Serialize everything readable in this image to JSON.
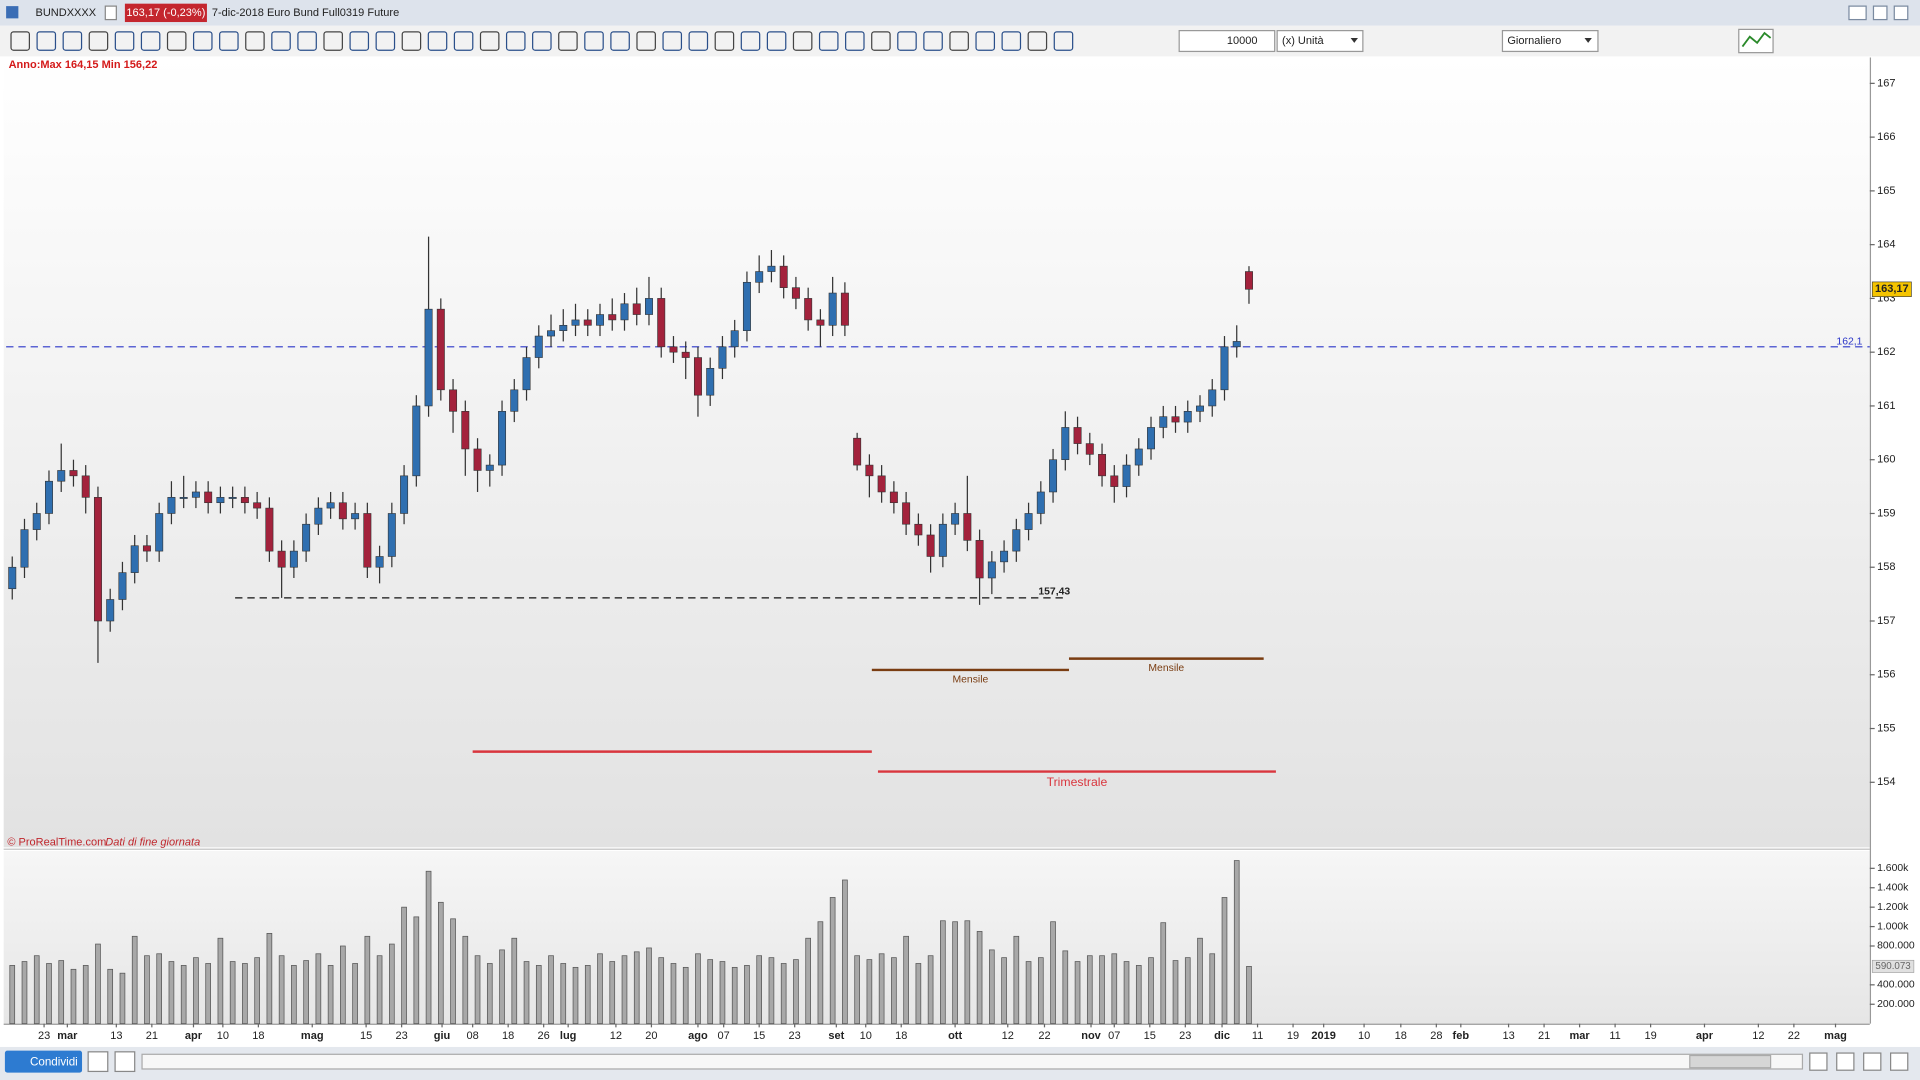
{
  "window": {
    "symbol": "BUNDXXXX",
    "price_badge": "163,17 (-0,23%)",
    "title": "7-dic-2018 Euro Bund Full0319 Future"
  },
  "toolbar": {
    "quantity": "10000",
    "unit": "(x) Unità",
    "period": "Giornaliero"
  },
  "footer": {
    "share": "Condividi"
  },
  "chart_data": [
    {
      "type": "candlestick",
      "header_note": "Anno:Max 164,15 Min 156,22",
      "source": "© ProRealTime.com",
      "source_note": "Dati di fine giornata",
      "x": [
        0,
        2,
        4,
        6,
        8,
        10,
        12,
        14,
        16,
        18,
        20,
        22,
        24,
        26,
        28,
        30,
        32,
        34,
        36,
        38,
        40,
        42,
        44,
        46,
        48,
        50,
        52,
        54,
        56,
        58,
        60,
        62,
        64,
        66,
        68,
        70,
        72,
        74,
        76,
        78,
        80,
        82,
        84,
        86,
        88,
        90,
        92,
        94,
        96,
        98,
        100,
        102,
        104,
        106,
        108,
        110,
        112,
        114,
        116,
        118,
        120,
        122,
        124,
        126,
        128,
        130,
        132,
        134,
        136,
        138,
        140,
        142,
        144,
        146,
        148,
        150,
        152,
        154,
        156,
        158,
        160,
        162,
        164,
        166,
        168,
        170,
        172,
        174,
        176,
        178,
        180,
        182,
        184,
        186,
        188,
        190,
        192,
        194,
        196,
        198,
        200,
        202
      ],
      "open": [
        157.6,
        158.0,
        158.7,
        159.0,
        159.6,
        159.8,
        159.7,
        159.3,
        157.0,
        157.4,
        157.9,
        158.4,
        158.3,
        159.0,
        159.3,
        159.3,
        159.4,
        159.2,
        159.3,
        159.3,
        159.2,
        159.1,
        158.3,
        158.0,
        158.3,
        158.8,
        159.1,
        159.2,
        158.9,
        159.0,
        158.0,
        158.2,
        159.0,
        159.7,
        161.0,
        162.8,
        161.3,
        160.9,
        160.2,
        159.8,
        159.9,
        160.9,
        161.3,
        161.9,
        162.3,
        162.4,
        162.5,
        162.6,
        162.5,
        162.7,
        162.6,
        162.9,
        162.7,
        163.0,
        162.1,
        162.0,
        161.9,
        161.2,
        161.7,
        162.1,
        162.4,
        163.3,
        163.5,
        163.6,
        163.2,
        163.0,
        162.6,
        162.5,
        163.1,
        160.4,
        159.9,
        159.7,
        159.4,
        159.2,
        158.8,
        158.6,
        158.2,
        158.8,
        159.0,
        158.5,
        157.8,
        158.1,
        158.3,
        158.7,
        159.0,
        159.4,
        160.0,
        160.6,
        160.3,
        160.1,
        159.7,
        159.5,
        159.9,
        160.2,
        160.6,
        160.8,
        160.7,
        160.9,
        161.0,
        161.3,
        162.1,
        163.5
      ],
      "high": [
        158.2,
        158.9,
        159.2,
        159.8,
        160.3,
        160.0,
        159.9,
        159.5,
        157.6,
        158.1,
        158.6,
        158.6,
        159.2,
        159.6,
        159.7,
        159.6,
        159.6,
        159.5,
        159.5,
        159.5,
        159.4,
        159.3,
        158.5,
        158.5,
        159.0,
        159.3,
        159.4,
        159.4,
        159.2,
        159.2,
        158.4,
        159.2,
        159.9,
        161.2,
        164.15,
        163.0,
        161.5,
        161.1,
        160.4,
        160.1,
        161.1,
        161.5,
        162.1,
        162.5,
        162.7,
        162.8,
        162.9,
        162.8,
        162.9,
        163.0,
        163.1,
        163.2,
        163.4,
        163.2,
        162.3,
        162.2,
        162.1,
        161.9,
        162.3,
        162.6,
        163.5,
        163.8,
        163.9,
        163.8,
        163.4,
        163.2,
        162.8,
        163.4,
        163.3,
        160.5,
        160.1,
        159.9,
        159.6,
        159.4,
        159.0,
        158.8,
        159.0,
        159.2,
        159.7,
        158.7,
        158.3,
        158.5,
        158.9,
        159.2,
        159.6,
        160.2,
        160.9,
        160.8,
        160.5,
        160.3,
        159.9,
        160.1,
        160.4,
        160.8,
        161.0,
        161.0,
        161.1,
        161.2,
        161.5,
        162.3,
        162.5,
        163.6
      ],
      "low": [
        157.4,
        157.8,
        158.5,
        158.8,
        159.4,
        159.5,
        159.0,
        156.22,
        156.8,
        157.2,
        157.7,
        158.1,
        158.1,
        158.8,
        159.1,
        159.1,
        159.0,
        159.0,
        159.1,
        159.0,
        158.9,
        158.1,
        157.43,
        157.8,
        158.1,
        158.6,
        158.9,
        158.7,
        158.7,
        157.8,
        157.7,
        158.0,
        158.8,
        159.5,
        160.8,
        161.1,
        160.5,
        159.7,
        159.4,
        159.5,
        159.7,
        160.7,
        161.1,
        161.7,
        162.1,
        162.2,
        162.3,
        162.3,
        162.3,
        162.4,
        162.4,
        162.5,
        162.5,
        161.9,
        161.8,
        161.5,
        160.8,
        161.0,
        161.5,
        161.9,
        162.2,
        163.1,
        163.3,
        163.0,
        162.8,
        162.4,
        162.1,
        162.3,
        162.3,
        159.8,
        159.3,
        159.2,
        159.0,
        158.6,
        158.4,
        157.9,
        158.0,
        158.6,
        158.3,
        157.3,
        157.5,
        157.9,
        158.1,
        158.5,
        158.8,
        159.2,
        159.8,
        160.1,
        159.9,
        159.5,
        159.2,
        159.3,
        159.7,
        160.0,
        160.4,
        160.5,
        160.5,
        160.7,
        160.8,
        161.1,
        161.9,
        162.9
      ],
      "close": [
        158.0,
        158.7,
        159.0,
        159.6,
        159.8,
        159.7,
        159.3,
        157.0,
        157.4,
        157.9,
        158.4,
        158.3,
        159.0,
        159.3,
        159.3,
        159.4,
        159.2,
        159.3,
        159.3,
        159.2,
        159.1,
        158.3,
        158.0,
        158.3,
        158.8,
        159.1,
        159.2,
        158.9,
        159.0,
        158.0,
        158.2,
        159.0,
        159.7,
        161.0,
        162.8,
        161.3,
        160.9,
        160.2,
        159.8,
        159.9,
        160.9,
        161.3,
        161.9,
        162.3,
        162.4,
        162.5,
        162.6,
        162.5,
        162.7,
        162.6,
        162.9,
        162.7,
        163.0,
        162.1,
        162.0,
        161.9,
        161.2,
        161.7,
        162.1,
        162.4,
        163.3,
        163.5,
        163.6,
        163.2,
        163.0,
        162.6,
        162.5,
        163.1,
        162.5,
        159.9,
        159.7,
        159.4,
        159.2,
        158.8,
        158.6,
        158.2,
        158.8,
        159.0,
        158.5,
        157.8,
        158.1,
        158.3,
        158.7,
        159.0,
        159.4,
        160.0,
        160.6,
        160.3,
        160.1,
        159.7,
        159.5,
        159.9,
        160.2,
        160.6,
        160.8,
        160.7,
        160.9,
        161.0,
        161.3,
        162.1,
        162.2,
        163.17
      ],
      "up_color": "#2f6fb0",
      "down_color": "#a3223c",
      "last_price": 163.17,
      "last_price_label": "163,17",
      "xlim": [
        -1,
        303.4
      ],
      "ylim": [
        152.79,
        167.48
      ],
      "yticks": [
        154,
        155,
        156,
        157,
        158,
        159,
        160,
        161,
        162,
        163,
        164,
        165,
        166,
        167
      ],
      "levels": [
        {
          "value": 162.1,
          "label": "162,1",
          "color": "#2a35c8",
          "style": "dashed"
        },
        {
          "value": 157.43,
          "label": "157,43",
          "color": "#111111",
          "style": "dashed",
          "x": [
            36.4,
            172
          ]
        },
        {
          "value": 156.09,
          "label": "Mensile",
          "color": "#7a3d12",
          "style": "solid",
          "x": [
            140.4,
            172.6
          ]
        },
        {
          "value": 156.3,
          "label": "Mensile",
          "color": "#7a3d12",
          "style": "solid",
          "x": [
            172.6,
            204.4
          ]
        },
        {
          "value": 154.57,
          "color": "#d9363e",
          "style": "solid",
          "x": [
            75.2,
            140.4
          ]
        },
        {
          "value": 154.2,
          "label": "Trimestrale",
          "color": "#d9363e",
          "style": "solid",
          "x": [
            141.4,
            206.4
          ]
        }
      ]
    },
    {
      "type": "bar",
      "color": "#a8a8a8",
      "values": [
        600000,
        640000,
        700000,
        620000,
        650000,
        560000,
        600000,
        820000,
        560000,
        520000,
        900000,
        700000,
        720000,
        640000,
        600000,
        680000,
        620000,
        880000,
        640000,
        620000,
        680000,
        930000,
        700000,
        600000,
        650000,
        720000,
        600000,
        800000,
        620000,
        900000,
        700000,
        820000,
        1200000,
        1100000,
        1570000,
        1250000,
        1080000,
        900000,
        700000,
        620000,
        760000,
        880000,
        640000,
        600000,
        700000,
        620000,
        580000,
        600000,
        720000,
        640000,
        700000,
        740000,
        780000,
        680000,
        620000,
        580000,
        720000,
        660000,
        640000,
        580000,
        600000,
        700000,
        680000,
        620000,
        660000,
        880000,
        1050000,
        1300000,
        1480000,
        700000,
        660000,
        720000,
        680000,
        900000,
        620000,
        700000,
        1060000,
        1050000,
        1060000,
        950000,
        760000,
        680000,
        900000,
        640000,
        680000,
        1050000,
        750000,
        640000,
        700000,
        700000,
        720000,
        640000,
        600000,
        680000,
        1040000,
        650000,
        680000,
        880000,
        720000,
        1300000,
        1680000,
        590073
      ],
      "last_value_label": "590.073",
      "ylim": [
        0,
        1753000
      ],
      "yticks": [
        {
          "value": 200000,
          "label": "200.000"
        },
        {
          "value": 400000,
          "label": "400.000"
        },
        {
          "value": 800000,
          "label": "800.000"
        },
        {
          "value": 1000000,
          "label": "1.000k"
        },
        {
          "value": 1200000,
          "label": "1.200k"
        },
        {
          "value": 1400000,
          "label": "1.400k"
        },
        {
          "value": 1600000,
          "label": "1.600k"
        }
      ],
      "xlim": [
        -1,
        303.4
      ],
      "xticks": [
        {
          "value": 5.2,
          "label": "23"
        },
        {
          "value": 9,
          "label": "mar"
        },
        {
          "value": 17,
          "label": "13"
        },
        {
          "value": 22.8,
          "label": "21"
        },
        {
          "value": 29.6,
          "label": "apr"
        },
        {
          "value": 34.4,
          "label": "10"
        },
        {
          "value": 40.2,
          "label": "18"
        },
        {
          "value": 49,
          "label": "mag"
        },
        {
          "value": 57.8,
          "label": "15"
        },
        {
          "value": 63.6,
          "label": "23"
        },
        {
          "value": 70.2,
          "label": "giu"
        },
        {
          "value": 75.2,
          "label": "08"
        },
        {
          "value": 81,
          "label": "18"
        },
        {
          "value": 86.8,
          "label": "26"
        },
        {
          "value": 90.8,
          "label": "lug"
        },
        {
          "value": 98.6,
          "label": "12"
        },
        {
          "value": 104.4,
          "label": "20"
        },
        {
          "value": 112,
          "label": "ago"
        },
        {
          "value": 116.2,
          "label": "07"
        },
        {
          "value": 122,
          "label": "15"
        },
        {
          "value": 127.8,
          "label": "23"
        },
        {
          "value": 134.6,
          "label": "set"
        },
        {
          "value": 139.4,
          "label": "10"
        },
        {
          "value": 145.2,
          "label": "18"
        },
        {
          "value": 154,
          "label": "ott"
        },
        {
          "value": 162.6,
          "label": "12"
        },
        {
          "value": 168.6,
          "label": "22"
        },
        {
          "value": 176.2,
          "label": "nov"
        },
        {
          "value": 180,
          "label": "07"
        },
        {
          "value": 185.8,
          "label": "15"
        },
        {
          "value": 191.6,
          "label": "23"
        },
        {
          "value": 197.6,
          "label": "dic"
        },
        {
          "value": 203.4,
          "label": "11"
        },
        {
          "value": 209.2,
          "label": "19"
        },
        {
          "value": 214.2,
          "label": "2019"
        },
        {
          "value": 220.8,
          "label": "10"
        },
        {
          "value": 226.8,
          "label": "18"
        },
        {
          "value": 232.6,
          "label": "28"
        },
        {
          "value": 236.6,
          "label": "feb"
        },
        {
          "value": 244.4,
          "label": "13"
        },
        {
          "value": 250.2,
          "label": "21"
        },
        {
          "value": 256,
          "label": "mar"
        },
        {
          "value": 261.8,
          "label": "11"
        },
        {
          "value": 267.6,
          "label": "19"
        },
        {
          "value": 276.4,
          "label": "apr"
        },
        {
          "value": 285.2,
          "label": "12"
        },
        {
          "value": 291,
          "label": "22"
        },
        {
          "value": 297.8,
          "label": "mag"
        }
      ]
    }
  ]
}
